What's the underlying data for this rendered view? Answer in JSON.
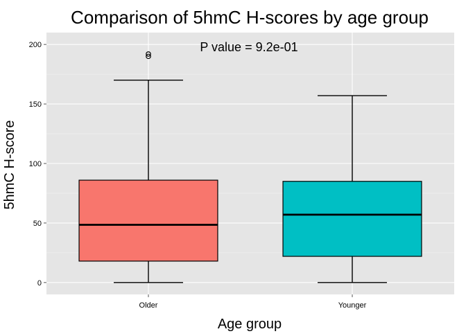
{
  "chart_data": {
    "type": "box",
    "title": "Comparison of 5hmC H-scores by age group",
    "annotation": "P value = 9.2e-01",
    "xlabel": "Age group",
    "ylabel": "5hmC H-score",
    "categories": [
      "Older",
      "Younger"
    ],
    "ylim": [
      -10,
      210
    ],
    "yticks": [
      0,
      50,
      100,
      150,
      200
    ],
    "grid": true,
    "legend": "none",
    "background_color": "#e5e5e5",
    "grid_color": "#ffffff",
    "boxes": [
      {
        "category": "Older",
        "min": 0,
        "q1": 18,
        "median": 48.5,
        "q3": 86,
        "max": 170,
        "outliers": [
          190,
          192
        ],
        "fill": "#f8766d"
      },
      {
        "category": "Younger",
        "min": 0,
        "q1": 22,
        "median": 57,
        "q3": 85,
        "max": 157,
        "outliers": [],
        "fill": "#00bfc4"
      }
    ]
  }
}
